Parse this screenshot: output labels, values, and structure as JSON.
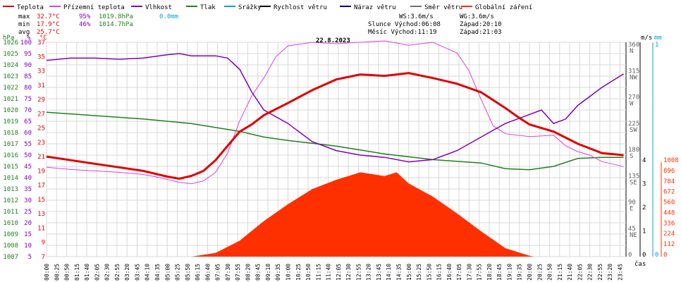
{
  "chart_data": {
    "type": "line",
    "title": "22.8.2023",
    "legend": [
      {
        "label": "Teplota",
        "color": "#e00000"
      },
      {
        "label": "Přízemní teplota",
        "color": "#e040e0"
      },
      {
        "label": "Vlhkost",
        "color": "#8000c0"
      },
      {
        "label": "Tlak",
        "color": "#208020"
      },
      {
        "label": "Srážky",
        "color": "#00a0e0"
      },
      {
        "label": "Rychlost větru",
        "color": "#000000"
      },
      {
        "label": "Náraz větru",
        "color": "#000080"
      },
      {
        "label": "Směr větru",
        "color": "#707070"
      },
      {
        "label": "Globální záření",
        "color": "#ff3000"
      }
    ],
    "stats": {
      "max_label": "max",
      "max_temp": "32.7°C",
      "max_hum": "95%",
      "max_press": "1019.8hPa",
      "rain": "0.0mm",
      "min_label": "min",
      "min_temp": "17.9°C",
      "min_hum": "46%",
      "min_press": "1014.7hPa",
      "avg_label": "avg",
      "avg_temp": "25.7°C"
    },
    "sun": {
      "ws": "WS:3.6m/s",
      "wg": "WG:3.6m/s",
      "sunrise": "Slunce Východ:06:08",
      "sunset": "Západ:20:10",
      "moonrise": "Měsíc Východ:11:19",
      "moonset": "Západ:21:03"
    },
    "axes": {
      "hpa": {
        "unit": "hPa",
        "ticks": [
          "1026",
          "1025",
          "1024",
          "1023",
          "1022",
          "1021",
          "1020",
          "1019",
          "1018",
          "1017",
          "1016",
          "1015",
          "1014",
          "1013",
          "1012",
          "1011",
          "1010",
          "1009",
          "1008",
          "1007"
        ]
      },
      "pct": {
        "unit": "%",
        "ticks": [
          "100",
          "95",
          "90",
          "85",
          "80",
          "75",
          "70",
          "65",
          "60",
          "55",
          "50",
          "45",
          "40",
          "35",
          "30",
          "25",
          "20",
          "15",
          "10",
          "5"
        ]
      },
      "temp": {
        "unit": "°C",
        "ticks": [
          "37",
          "35",
          "33",
          "31",
          "29",
          "27",
          "25",
          "23",
          "21",
          "19",
          "17",
          "15",
          "13",
          "11",
          "9",
          "7"
        ]
      },
      "dir": {
        "unit": "",
        "ticks": [
          "360 N",
          "315 NW",
          "270 W",
          "225 SW",
          "180 S",
          "135 SE",
          "90 E",
          "45 NE",
          "0"
        ]
      },
      "ms": {
        "unit": "m/s",
        "ticks": [
          "4",
          "3",
          "2",
          "1",
          "0"
        ]
      },
      "mm": {
        "unit": "mm",
        "ticks": [
          "1",
          "0"
        ]
      },
      "wm2": {
        "ticks": [
          "1008",
          "896",
          "784",
          "672",
          "560",
          "448",
          "336",
          "224",
          "112",
          "0"
        ]
      },
      "x_unit": "čas",
      "x_ticks": [
        "00:00",
        "00:25",
        "00:50",
        "01:15",
        "01:40",
        "02:05",
        "02:30",
        "02:55",
        "03:20",
        "03:45",
        "04:10",
        "04:35",
        "05:00",
        "05:25",
        "05:50",
        "06:15",
        "06:40",
        "07:05",
        "07:30",
        "07:55",
        "08:20",
        "08:45",
        "09:10",
        "09:35",
        "10:00",
        "10:25",
        "10:50",
        "11:15",
        "11:40",
        "12:05",
        "12:30",
        "12:55",
        "13:20",
        "13:45",
        "14:10",
        "14:35",
        "15:00",
        "15:25",
        "15:50",
        "16:15",
        "16:40",
        "17:05",
        "17:30",
        "17:55",
        "18:20",
        "18:45",
        "19:10",
        "19:35",
        "20:00",
        "20:25",
        "20:50",
        "21:15",
        "21:40",
        "22:05",
        "22:30",
        "22:55",
        "23:20",
        "23:45"
      ]
    },
    "series": [
      {
        "name": "Teplota",
        "unit": "°C",
        "hours": [
          0,
          1,
          2,
          3,
          4,
          5,
          5.5,
          6,
          6.5,
          7,
          7.5,
          8,
          8.5,
          9,
          10,
          11,
          12,
          13,
          14,
          15,
          16,
          17,
          18,
          19,
          19.5,
          20,
          21,
          22,
          23,
          23.9
        ],
        "values": [
          21,
          20.5,
          20,
          19.5,
          19,
          18.2,
          17.9,
          18.3,
          19,
          20.5,
          22.5,
          24.5,
          25.5,
          26.8,
          28.5,
          30.3,
          31.8,
          32.5,
          32.3,
          32.7,
          32,
          31.2,
          30,
          27.8,
          26.6,
          25.5,
          24.5,
          22.8,
          21.5,
          21.2
        ]
      },
      {
        "name": "Přízemní teplota",
        "unit": "°C",
        "hours": [
          0,
          1,
          2,
          3,
          4,
          4.5,
          5,
          5.5,
          6,
          6.5,
          7,
          7.5,
          8,
          8.5,
          9,
          9.5,
          10,
          11,
          12,
          13,
          14,
          15,
          16,
          17,
          17.5,
          18,
          18.5,
          19,
          20,
          21,
          21.5,
          22,
          22.5,
          23,
          23.9
        ],
        "values": [
          19.5,
          19.2,
          19,
          18.8,
          18.5,
          18.2,
          17.8,
          17.4,
          17.2,
          17.6,
          18.8,
          21.5,
          26,
          29.5,
          32,
          35,
          36.5,
          37,
          36.8,
          37,
          37.2,
          36.6,
          37,
          35.5,
          33,
          29,
          25.3,
          24.2,
          23.8,
          24,
          22.5,
          21.7,
          21.2,
          20.3,
          19.6
        ]
      },
      {
        "name": "Vlhkost",
        "unit": "%",
        "hours": [
          0,
          1,
          2,
          3,
          4,
          5,
          5.5,
          6,
          7,
          7.5,
          8,
          8.5,
          9,
          10,
          11,
          12,
          13,
          14,
          15,
          16,
          17,
          18,
          19,
          20,
          20.5,
          21,
          21.5,
          22,
          23,
          23.9
        ],
        "values": [
          92,
          93,
          93,
          92.5,
          93,
          94.5,
          95,
          94,
          94,
          93,
          88,
          78,
          70,
          64,
          56,
          52,
          50,
          49,
          47,
          48,
          52,
          58,
          64,
          68,
          70,
          64,
          66,
          72,
          80,
          86
        ]
      },
      {
        "name": "Tlak",
        "unit": "hPa",
        "hours": [
          0,
          2,
          4,
          6,
          8,
          9,
          10,
          12,
          14,
          16,
          18,
          19,
          20,
          21,
          22,
          23,
          23.9
        ],
        "values": [
          1019.8,
          1019.5,
          1019.2,
          1018.8,
          1018.1,
          1017.6,
          1017.3,
          1016.8,
          1016.1,
          1015.6,
          1015.3,
          1014.8,
          1014.7,
          1015.0,
          1015.7,
          1015.8,
          1015.8
        ]
      },
      {
        "name": "Globální záření",
        "unit": "W/m2",
        "hours": [
          6,
          7,
          8,
          9,
          10,
          11,
          12,
          13,
          14,
          14.5,
          15,
          16,
          17,
          18,
          19,
          20,
          20.2
        ],
        "values": [
          0,
          40,
          170,
          380,
          560,
          720,
          820,
          900,
          860,
          900,
          780,
          640,
          460,
          270,
          90,
          10,
          0
        ]
      }
    ]
  }
}
